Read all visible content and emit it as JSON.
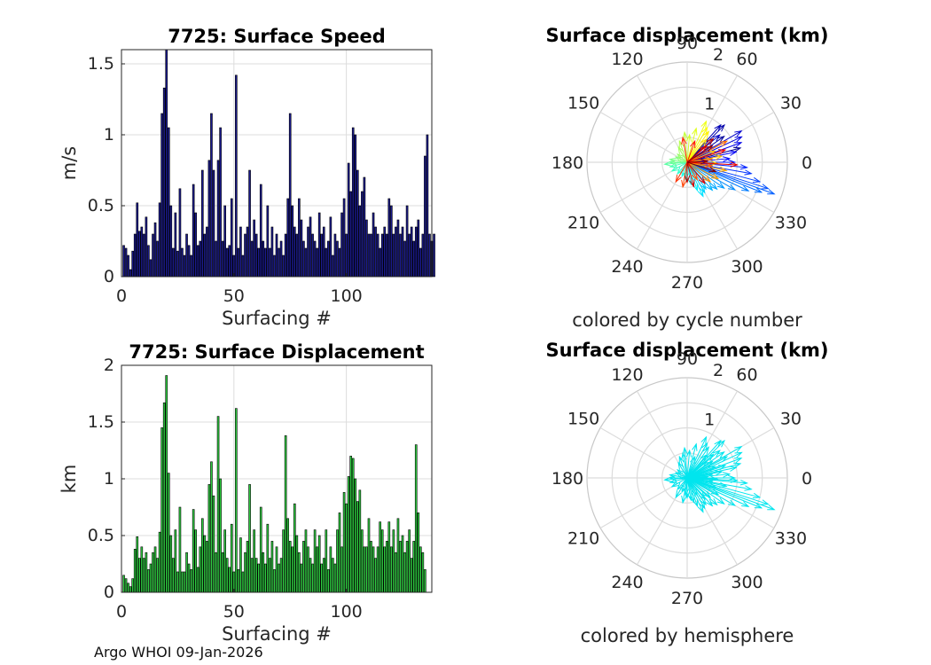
{
  "chart_data": [
    {
      "type": "bar",
      "title": "7725: Surface Speed",
      "xlabel": "Surfacing #",
      "ylabel": "m/s",
      "xlim": [
        0,
        138
      ],
      "ylim": [
        0,
        1.6
      ],
      "xticks": [
        0,
        50,
        100
      ],
      "yticks": [
        0,
        0.5,
        1,
        1.5
      ],
      "ytick_labels": [
        "0",
        "0.5",
        "1",
        "1.5"
      ],
      "bar_color": "#1a1a8c",
      "grid": true,
      "categories_start": 1,
      "values": [
        0.22,
        0.2,
        0.15,
        0.05,
        0.18,
        0.3,
        0.52,
        0.32,
        0.35,
        0.3,
        0.42,
        0.22,
        0.12,
        0.3,
        0.38,
        0.25,
        0.52,
        1.15,
        1.33,
        1.6,
        1.05,
        0.5,
        0.2,
        0.45,
        0.18,
        0.62,
        0.2,
        0.15,
        0.3,
        0.22,
        0.15,
        0.65,
        0.45,
        0.22,
        0.25,
        0.75,
        0.3,
        0.35,
        0.82,
        1.15,
        0.75,
        0.25,
        0.82,
        1.05,
        0.25,
        0.5,
        0.2,
        0.22,
        0.55,
        0.15,
        1.42,
        0.2,
        0.35,
        0.15,
        0.3,
        0.35,
        0.75,
        0.25,
        0.4,
        0.3,
        0.2,
        0.65,
        0.25,
        0.2,
        0.5,
        0.2,
        0.35,
        0.15,
        0.3,
        0.2,
        0.25,
        0.15,
        0.3,
        0.55,
        1.15,
        0.5,
        0.35,
        0.3,
        0.55,
        0.4,
        0.25,
        0.2,
        0.35,
        0.42,
        0.3,
        0.25,
        0.2,
        0.45,
        0.3,
        0.35,
        0.2,
        0.25,
        0.42,
        0.15,
        0.3,
        0.25,
        0.2,
        0.45,
        0.55,
        0.3,
        0.8,
        0.6,
        1.05,
        1.0,
        0.75,
        0.5,
        0.6,
        0.7,
        0.4,
        0.3,
        0.3,
        0.45,
        0.35,
        0.3,
        0.2,
        0.3,
        0.35,
        0.3,
        0.55,
        0.5,
        0.3,
        0.35,
        0.4,
        0.3,
        0.35,
        0.25,
        0.5,
        0.3,
        0.35,
        0.25,
        0.35,
        0.4,
        0.2,
        0.3,
        0.85,
        1.0,
        0.3,
        0.25,
        0.3
      ],
      "axes_box": [
        137,
        56,
        350,
        256
      ]
    },
    {
      "type": "bar",
      "title": "7725: Surface Displacement",
      "xlabel": "Surfacing #",
      "ylabel": "km",
      "xlim": [
        0,
        138
      ],
      "ylim": [
        0,
        2
      ],
      "xticks": [
        0,
        50,
        100
      ],
      "yticks": [
        0,
        0.5,
        1,
        1.5,
        2
      ],
      "ytick_labels": [
        "0",
        "0.5",
        "1",
        "1.5",
        "2"
      ],
      "bar_color": "#2ecc40",
      "grid": true,
      "categories_start": 1,
      "values": [
        0.15,
        0.12,
        0.08,
        0.05,
        0.12,
        0.38,
        0.49,
        0.3,
        0.4,
        0.3,
        0.35,
        0.2,
        0.25,
        0.35,
        0.4,
        0.3,
        0.53,
        1.45,
        1.67,
        1.91,
        1.05,
        0.5,
        0.3,
        0.55,
        0.18,
        0.75,
        0.18,
        0.18,
        0.35,
        0.25,
        0.2,
        0.73,
        0.55,
        0.22,
        0.4,
        0.65,
        0.5,
        0.45,
        0.95,
        1.15,
        0.85,
        0.35,
        1.55,
        1.0,
        0.35,
        0.55,
        0.3,
        0.22,
        0.6,
        0.18,
        1.62,
        0.2,
        0.48,
        0.18,
        0.35,
        0.45,
        0.95,
        0.3,
        0.55,
        0.3,
        0.25,
        0.75,
        0.35,
        0.25,
        0.6,
        0.3,
        0.45,
        0.2,
        0.4,
        0.25,
        0.3,
        0.55,
        1.38,
        0.65,
        0.45,
        0.4,
        0.78,
        0.5,
        0.35,
        0.25,
        0.45,
        0.55,
        0.4,
        0.3,
        0.25,
        0.55,
        0.4,
        0.5,
        0.25,
        0.3,
        0.55,
        0.2,
        0.4,
        0.3,
        0.25,
        0.55,
        0.7,
        0.4,
        0.88,
        0.78,
        1.02,
        1.2,
        1.18,
        1.0,
        0.8,
        0.9,
        0.55,
        0.4,
        0.4,
        0.65,
        0.45,
        0.4,
        0.3,
        0.4,
        0.62,
        0.55,
        0.4,
        0.45,
        0.62,
        0.4,
        0.55,
        0.35,
        0.65,
        0.45,
        0.5,
        0.35,
        0.45,
        0.55,
        0.3,
        0.45,
        1.3,
        0.7,
        0.4,
        0.35,
        0.2
      ],
      "axes_box": [
        137,
        412,
        350,
        256
      ]
    },
    {
      "type": "polar-vectors",
      "title": "Surface displacement (km)",
      "caption": "colored by cycle number",
      "r_max": 2,
      "r_ticks": [
        1,
        2
      ],
      "theta_labels": [
        "0",
        "30",
        "60",
        "90",
        "120",
        "150",
        "180",
        "210",
        "240",
        "270",
        "300",
        "330"
      ],
      "color_scale": [
        "#00008f",
        "#0000ff",
        "#0080ff",
        "#00ffff",
        "#80ff80",
        "#ffff00",
        "#ff8000",
        "#ff0000",
        "#800000"
      ],
      "color_by": "cycle",
      "vectors": [
        [
          15,
          1.1
        ],
        [
          35,
          0.9
        ],
        [
          45,
          1.05
        ],
        [
          48,
          1.0
        ],
        [
          40,
          0.85
        ],
        [
          30,
          1.25
        ],
        [
          25,
          1.2
        ],
        [
          20,
          1.15
        ],
        [
          12,
          1.0
        ],
        [
          5,
          0.85
        ],
        [
          0,
          0.95
        ],
        [
          -5,
          1.2
        ],
        [
          -10,
          1.3
        ],
        [
          -15,
          1.5
        ],
        [
          -18,
          1.7
        ],
        [
          -20,
          1.85
        ],
        [
          -22,
          1.6
        ],
        [
          -25,
          1.35
        ],
        [
          -30,
          1.1
        ],
        [
          -35,
          0.9
        ],
        [
          -42,
          0.8
        ],
        [
          -48,
          0.75
        ],
        [
          -55,
          0.65
        ],
        [
          -60,
          0.7
        ],
        [
          -65,
          0.75
        ],
        [
          -70,
          0.6
        ],
        [
          -80,
          0.45
        ],
        [
          -95,
          0.35
        ],
        [
          -110,
          0.3
        ],
        [
          -130,
          0.3
        ],
        [
          -150,
          0.35
        ],
        [
          -165,
          0.35
        ],
        [
          -175,
          0.45
        ],
        [
          180,
          0.35
        ],
        [
          170,
          0.35
        ],
        [
          155,
          0.25
        ],
        [
          140,
          0.25
        ],
        [
          120,
          0.35
        ],
        [
          110,
          0.45
        ],
        [
          95,
          0.6
        ],
        [
          85,
          0.55
        ],
        [
          75,
          0.7
        ],
        [
          65,
          0.9
        ],
        [
          60,
          0.8
        ],
        [
          55,
          0.75
        ],
        [
          50,
          0.6
        ],
        [
          -2,
          0.6
        ],
        [
          10,
          0.7
        ],
        [
          22,
          0.6
        ],
        [
          -12,
          0.8
        ],
        [
          -28,
          0.7
        ],
        [
          -40,
          0.6
        ],
        [
          8,
          0.5
        ],
        [
          28,
          0.9
        ],
        [
          -8,
          0.5
        ],
        [
          -60,
          0.4
        ],
        [
          -100,
          0.5
        ],
        [
          -120,
          0.45
        ],
        [
          100,
          0.5
        ],
        [
          70,
          0.45
        ],
        [
          40,
          0.5
        ],
        [
          18,
          0.8
        ],
        [
          -3,
          1.0
        ],
        [
          -50,
          0.55
        ],
        [
          -75,
          0.5
        ],
        [
          -90,
          0.4
        ],
        [
          42,
          0.7
        ],
        [
          33,
          0.6
        ],
        [
          3,
          0.4
        ],
        [
          -18,
          0.6
        ]
      ],
      "axes_box": [
        775,
        183,
        113
      ]
    },
    {
      "type": "polar-vectors",
      "title": "Surface displacement (km)",
      "caption": "colored by hemisphere",
      "r_max": 2,
      "r_ticks": [
        1,
        2
      ],
      "theta_labels": [
        "0",
        "30",
        "60",
        "90",
        "120",
        "150",
        "180",
        "210",
        "240",
        "270",
        "300",
        "330"
      ],
      "vector_color": "#00e5ee",
      "vectors": [
        [
          15,
          1.1
        ],
        [
          35,
          0.9
        ],
        [
          45,
          1.05
        ],
        [
          48,
          1.0
        ],
        [
          40,
          0.85
        ],
        [
          30,
          1.25
        ],
        [
          25,
          1.2
        ],
        [
          20,
          1.15
        ],
        [
          12,
          1.0
        ],
        [
          5,
          0.85
        ],
        [
          0,
          0.95
        ],
        [
          -5,
          1.2
        ],
        [
          -10,
          1.3
        ],
        [
          -15,
          1.5
        ],
        [
          -18,
          1.7
        ],
        [
          -20,
          1.85
        ],
        [
          -22,
          1.6
        ],
        [
          -25,
          1.35
        ],
        [
          -30,
          1.1
        ],
        [
          -35,
          0.9
        ],
        [
          -42,
          0.8
        ],
        [
          -48,
          0.75
        ],
        [
          -55,
          0.65
        ],
        [
          -60,
          0.7
        ],
        [
          -65,
          0.75
        ],
        [
          -70,
          0.6
        ],
        [
          -80,
          0.45
        ],
        [
          -95,
          0.35
        ],
        [
          -110,
          0.3
        ],
        [
          -130,
          0.3
        ],
        [
          -150,
          0.35
        ],
        [
          -165,
          0.35
        ],
        [
          -175,
          0.45
        ],
        [
          180,
          0.35
        ],
        [
          170,
          0.35
        ],
        [
          155,
          0.25
        ],
        [
          140,
          0.25
        ],
        [
          120,
          0.35
        ],
        [
          110,
          0.45
        ],
        [
          95,
          0.6
        ],
        [
          85,
          0.55
        ],
        [
          75,
          0.7
        ],
        [
          65,
          0.9
        ],
        [
          60,
          0.8
        ],
        [
          55,
          0.75
        ],
        [
          50,
          0.6
        ],
        [
          -2,
          0.6
        ],
        [
          10,
          0.7
        ],
        [
          22,
          0.6
        ],
        [
          -12,
          0.8
        ],
        [
          -28,
          0.7
        ],
        [
          -40,
          0.6
        ],
        [
          8,
          0.5
        ],
        [
          28,
          0.9
        ],
        [
          -8,
          0.5
        ],
        [
          -60,
          0.4
        ],
        [
          -100,
          0.5
        ],
        [
          -120,
          0.45
        ],
        [
          100,
          0.5
        ],
        [
          70,
          0.45
        ],
        [
          40,
          0.5
        ],
        [
          18,
          0.8
        ],
        [
          -3,
          1.0
        ],
        [
          -50,
          0.55
        ],
        [
          -75,
          0.5
        ],
        [
          -90,
          0.4
        ],
        [
          42,
          0.7
        ],
        [
          33,
          0.6
        ],
        [
          3,
          0.4
        ],
        [
          -18,
          0.6
        ]
      ],
      "axes_box": [
        775,
        539,
        113
      ]
    }
  ],
  "footer": "Argo WHOI 09-Jan-2026"
}
